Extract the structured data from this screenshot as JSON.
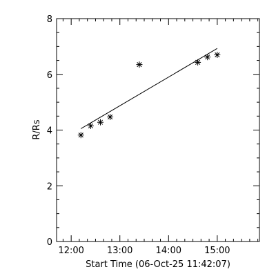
{
  "chart_data": {
    "type": "scatter",
    "title": "",
    "xlabel": "Start Time (06-Oct-25 11:42:07)",
    "ylabel": "R/Rs",
    "x_unit": "time",
    "xlim": [
      "11:42",
      "15:52"
    ],
    "ylim": [
      0,
      8
    ],
    "x_ticks": [
      "12:00",
      "13:00",
      "14:00",
      "15:00"
    ],
    "y_ticks": [
      "0",
      "2",
      "4",
      "6",
      "8"
    ],
    "grid": false,
    "marker": "asterisk",
    "points": [
      {
        "x": "12:12",
        "y": 3.82
      },
      {
        "x": "12:24",
        "y": 4.15
      },
      {
        "x": "12:36",
        "y": 4.28
      },
      {
        "x": "12:48",
        "y": 4.47
      },
      {
        "x": "13:24",
        "y": 6.35
      },
      {
        "x": "14:36",
        "y": 6.43
      },
      {
        "x": "14:48",
        "y": 6.62
      },
      {
        "x": "15:00",
        "y": 6.7
      }
    ],
    "fit_line": {
      "x": [
        "12:12",
        "15:00"
      ],
      "y": [
        4.05,
        6.93
      ]
    }
  }
}
